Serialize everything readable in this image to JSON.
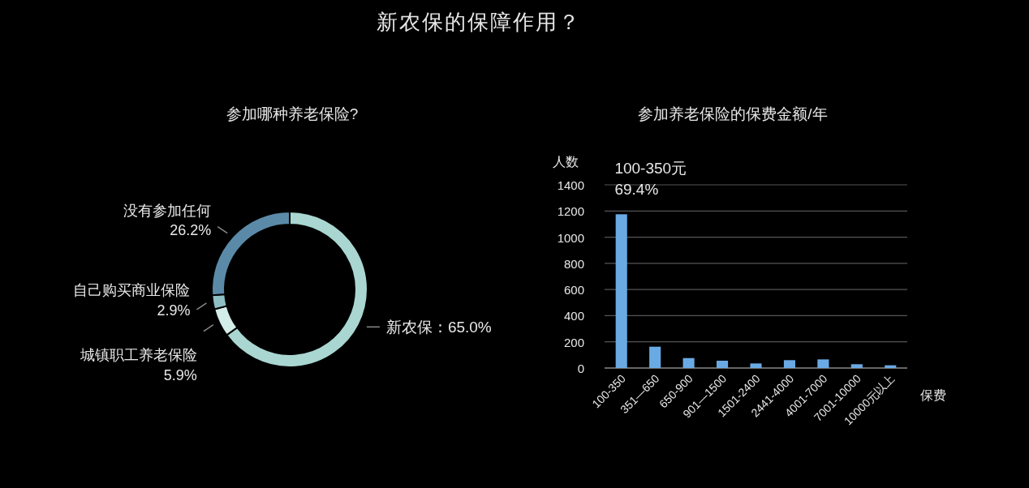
{
  "chart_data": [
    {
      "type": "donut",
      "title": "新农保的保障作用？",
      "subtitle": "参加哪种养老保险?",
      "categories": [
        "新农保",
        "城镇职工养老保险",
        "自己购买商业保险",
        "没有参加任何"
      ],
      "values": [
        65.0,
        5.9,
        2.9,
        26.2
      ],
      "colors": [
        "#a9d6d1",
        "#d3ede8",
        "#8dbfc4",
        "#5b8aa8"
      ],
      "value_labels": [
        "65.0%",
        "5.9%",
        "2.9%",
        "26.2%"
      ]
    },
    {
      "type": "bar",
      "title": "参加养老保险的保费金额/年",
      "ylabel": "人数",
      "xlabel": "保费",
      "categories": [
        "100-350",
        "351—650",
        "650-900",
        "901—1500",
        "1501-2400",
        "2441-4000",
        "4001-7000",
        "7001-10000",
        "10000元以上"
      ],
      "values": [
        1175,
        163,
        76,
        56,
        35,
        60,
        66,
        29,
        21
      ],
      "color": "#6aaae4",
      "ylim": [
        0,
        1400
      ],
      "yticks": [
        0,
        200,
        400,
        600,
        800,
        1000,
        1200,
        1400
      ],
      "grid": "y",
      "annotations": [
        {
          "text": "100-350元\n69.4%",
          "x": "100-350",
          "y": 1175
        }
      ]
    }
  ]
}
